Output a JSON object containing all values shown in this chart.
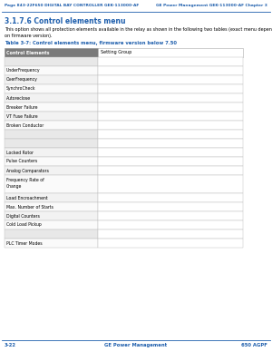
{
  "header_left": "Page 843-22F650 DIGITAL BAY CONTROLLER GEK-113000-AF",
  "header_right": "GE Power Management GEK-113000-AF Chapter 3",
  "subsection": "3.1.7.6 Control elements menu",
  "body_text1": "This option shows all protection elements available in the relay as shown in the following two tables (exact menu depends",
  "body_text2": "on firmware version).",
  "table_title": "Table 3-7: Control elements menu, firmware version below 7.50",
  "col_header": "Control Elements",
  "col2_header": "Setting Group",
  "items": [
    "",
    "UnderFrequency",
    "OverFrequency",
    "SynchroCheck",
    "Autoreclose",
    "Breaker Failure",
    "VT Fuse Failure",
    "Broken Conductor",
    "",
    "",
    "Locked Rotor",
    "Pulse Counters",
    "Analog Comparators",
    "Frequency Rate of\nChange",
    "Load Encroachment",
    "Max. Number of Starts",
    "Digital Counters",
    "Cold Load Pickup",
    "",
    "PLC Timer Modes"
  ],
  "footer_left": "3-22",
  "footer_center": "GE Power Management",
  "footer_right": "650 AGPF",
  "header_blue": "#1F5FAD",
  "col_header_bg": "#7A7A7A",
  "text_color": "#000000",
  "body_bg": "#FFFFFF"
}
